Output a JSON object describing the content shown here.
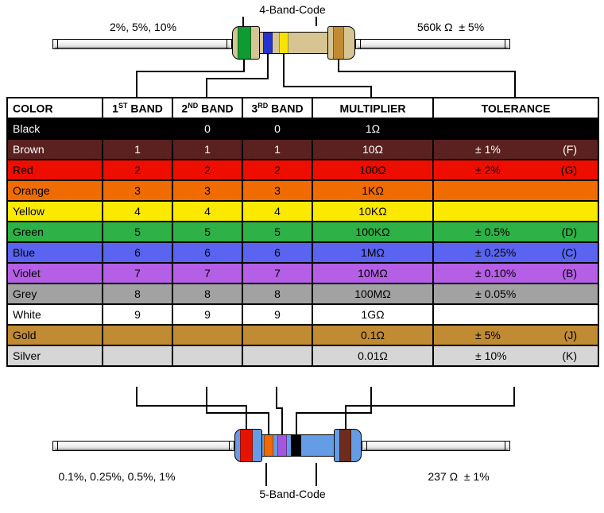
{
  "titles": {
    "four_band": "4-Band-Code",
    "five_band": "5-Band-Code"
  },
  "top_resistor": {
    "left_label": "2%, 5%, 10%",
    "right_label": "560k Ω  ± 5%",
    "body_color": "#d6c493",
    "bands": [
      {
        "name": "green",
        "color": "#0f9b31"
      },
      {
        "name": "blue",
        "color": "#2433cf"
      },
      {
        "name": "yellow",
        "color": "#f8e300"
      },
      {
        "name": "gold",
        "color": "#c08b32"
      }
    ]
  },
  "bottom_resistor": {
    "left_label": "0.1%, 0.25%, 0.5%, 1%",
    "right_label": "237 Ω  ± 1%",
    "body_color": "#649ce6",
    "bands": [
      {
        "name": "red",
        "color": "#e51400"
      },
      {
        "name": "orange",
        "color": "#ef6a00"
      },
      {
        "name": "violet",
        "color": "#a257dd"
      },
      {
        "name": "black",
        "color": "#000000"
      },
      {
        "name": "brown",
        "color": "#6d2c1d"
      }
    ]
  },
  "table": {
    "headers": [
      {
        "pre": "COLOR",
        "sup": "",
        "post": ""
      },
      {
        "pre": "1",
        "sup": "ST",
        "post": " BAND"
      },
      {
        "pre": "2",
        "sup": "ND",
        "post": " BAND"
      },
      {
        "pre": "3",
        "sup": "RD",
        "post": " BAND"
      },
      {
        "pre": "MULTIPLIER",
        "sup": "",
        "post": ""
      },
      {
        "pre": "TOLERANCE",
        "sup": "",
        "post": ""
      }
    ],
    "rows": [
      {
        "color": "Black",
        "band1": "",
        "band2": "0",
        "band3": "0",
        "multiplier": "1Ω",
        "tolerance": "",
        "letter": "",
        "bg": "#000000",
        "fg": "#ffffff"
      },
      {
        "color": "Brown",
        "band1": "1",
        "band2": "1",
        "band3": "1",
        "multiplier": "10Ω",
        "tolerance": "± 1%",
        "letter": "(F)",
        "bg": "#5a211f",
        "fg": "#ffffff"
      },
      {
        "color": "Red",
        "band1": "2",
        "band2": "2",
        "band3": "2",
        "multiplier": "100Ω",
        "tolerance": "± 2%",
        "letter": "(G)",
        "bg": "#ed0e00",
        "fg": "#000000"
      },
      {
        "color": "Orange",
        "band1": "3",
        "band2": "3",
        "band3": "3",
        "multiplier": "1KΩ",
        "tolerance": "",
        "letter": "",
        "bg": "#f06c00",
        "fg": "#000000"
      },
      {
        "color": "Yellow",
        "band1": "4",
        "band2": "4",
        "band3": "4",
        "multiplier": "10KΩ",
        "tolerance": "",
        "letter": "",
        "bg": "#fce900",
        "fg": "#000000"
      },
      {
        "color": "Green",
        "band1": "5",
        "band2": "5",
        "band3": "5",
        "multiplier": "100KΩ",
        "tolerance": "± 0.5%",
        "letter": "(D)",
        "bg": "#2eb146",
        "fg": "#000000"
      },
      {
        "color": "Blue",
        "band1": "6",
        "band2": "6",
        "band3": "6",
        "multiplier": "1MΩ",
        "tolerance": "± 0.25%",
        "letter": "(C)",
        "bg": "#5a64f0",
        "fg": "#000000"
      },
      {
        "color": "Violet",
        "band1": "7",
        "band2": "7",
        "band3": "7",
        "multiplier": "10MΩ",
        "tolerance": "± 0.10%",
        "letter": "(B)",
        "bg": "#b55fe6",
        "fg": "#000000"
      },
      {
        "color": "Grey",
        "band1": "8",
        "band2": "8",
        "band3": "8",
        "multiplier": "100MΩ",
        "tolerance": "± 0.05%",
        "letter": "",
        "bg": "#a2a2a2",
        "fg": "#000000"
      },
      {
        "color": "White",
        "band1": "9",
        "band2": "9",
        "band3": "9",
        "multiplier": "1GΩ",
        "tolerance": "",
        "letter": "",
        "bg": "#ffffff",
        "fg": "#000000"
      },
      {
        "color": "Gold",
        "band1": "",
        "band2": "",
        "band3": "",
        "multiplier": "0.1Ω",
        "tolerance": "± 5%",
        "letter": "(J)",
        "bg": "#c08b32",
        "fg": "#000000"
      },
      {
        "color": "Silver",
        "band1": "",
        "band2": "",
        "band3": "",
        "multiplier": "0.01Ω",
        "tolerance": "± 10%",
        "letter": "(K)",
        "bg": "#d6d6d6",
        "fg": "#000000"
      }
    ]
  }
}
